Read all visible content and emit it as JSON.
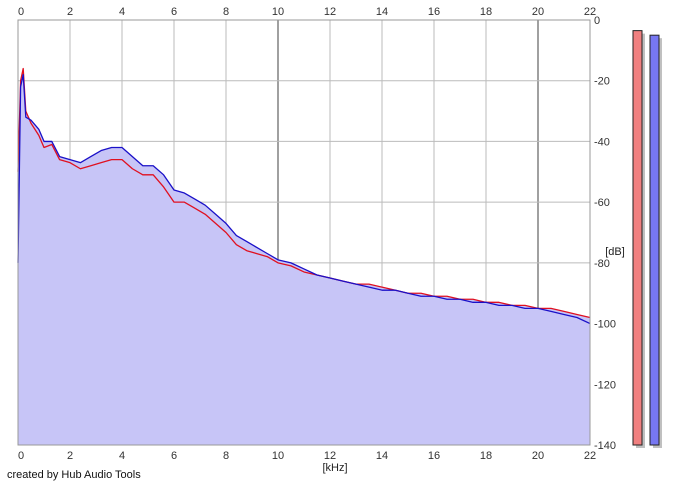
{
  "chart_data": {
    "type": "area",
    "xlabel": "[kHz]",
    "ylabel": "[dB]",
    "xlim": [
      0,
      22
    ],
    "ylim": [
      -140,
      0
    ],
    "x_ticks": [
      0,
      2,
      4,
      6,
      8,
      10,
      12,
      14,
      16,
      18,
      20,
      22
    ],
    "y_ticks": [
      0,
      -20,
      -40,
      -60,
      -80,
      -100,
      -120,
      -140
    ],
    "grid": true,
    "fill_color": "#c7c5f7",
    "series": [
      {
        "color": "#e01020",
        "x": [
          0.0,
          0.1,
          0.2,
          0.3,
          0.5,
          0.8,
          1.0,
          1.3,
          1.6,
          2.0,
          2.4,
          2.8,
          3.2,
          3.6,
          4.0,
          4.4,
          4.8,
          5.2,
          5.6,
          6.0,
          6.4,
          6.8,
          7.2,
          7.6,
          8.0,
          8.4,
          8.8,
          9.2,
          9.6,
          10.0,
          10.5,
          11.0,
          11.5,
          12.0,
          12.5,
          13.0,
          13.5,
          14.0,
          14.5,
          15.0,
          15.5,
          16.0,
          16.5,
          17.0,
          17.5,
          18.0,
          18.5,
          19.0,
          19.5,
          20.0,
          20.5,
          21.0,
          21.5,
          22.0
        ],
        "values": [
          -50,
          -20,
          -16,
          -30,
          -34,
          -38,
          -42,
          -41,
          -46,
          -47,
          -49,
          -48,
          -47,
          -46,
          -46,
          -49,
          -51,
          -51,
          -55,
          -60,
          -60,
          -62,
          -64,
          -67,
          -70,
          -74,
          -76,
          -77,
          -78,
          -80,
          -81,
          -83,
          -84,
          -85,
          -86,
          -87,
          -87,
          -88,
          -89,
          -90,
          -90,
          -91,
          -91,
          -92,
          -92,
          -93,
          -93,
          -94,
          -94,
          -95,
          -95,
          -96,
          -97,
          -98
        ]
      },
      {
        "color": "#1a10c8",
        "x": [
          0.0,
          0.1,
          0.2,
          0.3,
          0.5,
          0.8,
          1.0,
          1.3,
          1.6,
          2.0,
          2.4,
          2.8,
          3.2,
          3.6,
          4.0,
          4.4,
          4.8,
          5.2,
          5.6,
          6.0,
          6.4,
          6.8,
          7.2,
          7.6,
          8.0,
          8.4,
          8.8,
          9.2,
          9.6,
          10.0,
          10.5,
          11.0,
          11.5,
          12.0,
          12.5,
          13.0,
          13.5,
          14.0,
          14.5,
          15.0,
          15.5,
          16.0,
          16.5,
          17.0,
          17.5,
          18.0,
          18.5,
          19.0,
          19.5,
          20.0,
          20.5,
          21.0,
          21.5,
          22.0
        ],
        "values": [
          -80,
          -22,
          -18,
          -32,
          -33,
          -36,
          -40,
          -40,
          -45,
          -46,
          -47,
          -45,
          -43,
          -42,
          -42,
          -45,
          -48,
          -48,
          -51,
          -56,
          -57,
          -59,
          -61,
          -64,
          -67,
          -71,
          -73,
          -75,
          -77,
          -79,
          -80,
          -82,
          -84,
          -85,
          -86,
          -87,
          -88,
          -89,
          -89,
          -90,
          -91,
          -91,
          -92,
          -92,
          -93,
          -93,
          -94,
          -94,
          -95,
          -95,
          -96,
          -97,
          -98,
          -100
        ]
      }
    ],
    "level_meters": [
      {
        "color": "#f08080",
        "level": -3.5
      },
      {
        "color": "#7777f2",
        "level": -5
      }
    ]
  },
  "footer": {
    "credit": "created by Hub Audio Tools"
  }
}
